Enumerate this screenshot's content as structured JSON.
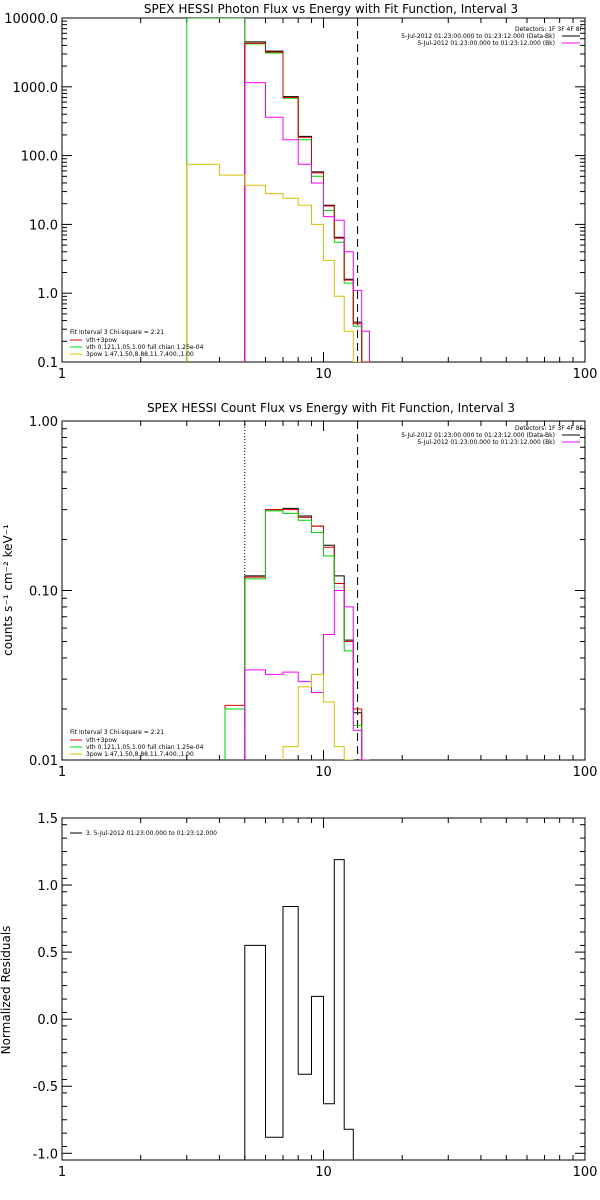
{
  "chart_data": [
    {
      "type": "line",
      "title": "SPEX HESSI Photon Flux vs Energy with Fit Function, Interval 3",
      "xscale": "log",
      "yscale": "log",
      "xlim": [
        1,
        100
      ],
      "ylim": [
        0.1,
        10000
      ],
      "xticks": [
        "1",
        "10",
        "100"
      ],
      "yticks": [
        "0.1",
        "1.0",
        "10.0",
        "100.0",
        "1000.0",
        "10000.0"
      ],
      "ytick_values": [
        0.1,
        1,
        10,
        100,
        1000,
        10000
      ],
      "header_lines": [
        "Detectors: 1F 3F 4F 8F",
        "5-Jul-2012 01:23:00.000 to 01:23:12.000 (Data-Bk)",
        "5-Jul-2012 01:23:00.000 to 01:23:12.000 (Bk)"
      ],
      "legend_title": "Fit Interval 3   Chi-square = 2.21",
      "legend": [
        {
          "label": "vth+3pow",
          "color": "#e00000"
        },
        {
          "label": "vth 0.121,1.05,1.00   full chian 1.25e-04",
          "color": "#00d000"
        },
        {
          "label": "3pow 1.47,1.50,8.88,11.7,400.,1.00",
          "color": "#d8c000"
        }
      ],
      "vlines": [
        {
          "x": 5.0,
          "style": "solid",
          "color": "#ff00ff"
        },
        {
          "x": 13.5,
          "style": "dashed",
          "color": "#000000"
        }
      ],
      "bin_edges": [
        3.0,
        4.0,
        5.0,
        6.0,
        7.0,
        8.0,
        9.0,
        10.0,
        11.0,
        12.0,
        13.0,
        14.0,
        15.0
      ],
      "series": [
        {
          "color": "#000000",
          "from": 2,
          "values": [
            4500,
            3300,
            720,
            190,
            58,
            19,
            6.5,
            1.6,
            0.38,
            0.1
          ]
        },
        {
          "color": "#00d000",
          "from": 0,
          "values": [
            10000,
            10000,
            4200,
            3100,
            680,
            170,
            50,
            16,
            5.5,
            1.4,
            0.33,
            0.1
          ]
        },
        {
          "color": "#e00000",
          "from": 2,
          "values": [
            4300,
            3200,
            700,
            185,
            56,
            18.5,
            6.3,
            1.55,
            0.36,
            0.1
          ]
        },
        {
          "color": "#ff00ff",
          "from": 2,
          "values": [
            1150,
            360,
            170,
            75,
            40,
            13,
            11.5,
            4,
            1.1,
            0.28
          ]
        },
        {
          "color": "#d8c000",
          "from": 0,
          "values": [
            75,
            52,
            37,
            28,
            24,
            19,
            10,
            3,
            0.9,
            0.28,
            0.1
          ]
        }
      ]
    },
    {
      "type": "line",
      "title": "SPEX HESSI Count Flux vs Energy with Fit Function, Interval 3",
      "xscale": "log",
      "yscale": "log",
      "xlim": [
        1,
        100
      ],
      "ylim": [
        0.01,
        1.0
      ],
      "xticks": [
        "1",
        "10",
        "100"
      ],
      "yticks": [
        "0.01",
        "0.10",
        "1.00"
      ],
      "ytick_values": [
        0.01,
        0.1,
        1.0
      ],
      "ylabel": "counts s⁻¹ cm⁻² keV⁻¹",
      "header_lines": [
        "Detectors: 1F 3F 4F 8F",
        "5-Jul-2012 01:23:00.000 to 01:23:12.000 (Data-Bk)",
        "5-Jul-2012 01:23:00.000 to 01:23:12.000 (Bk)"
      ],
      "legend_title": "Fit Interval 3   Chi-square = 2.21",
      "legend": [
        {
          "label": "vth+3pow",
          "color": "#e00000"
        },
        {
          "label": "vth 0.121,1.05,1.00   full chian 1.25e-04",
          "color": "#00d000"
        },
        {
          "label": "3pow 1.47,1.50,8.88,11.7,400.,1.00",
          "color": "#d8c000"
        }
      ],
      "vlines": [
        {
          "x": 5.0,
          "style": "dotted",
          "color": "#000000"
        },
        {
          "x": 13.5,
          "style": "dashed",
          "color": "#000000"
        }
      ],
      "bin_edges": [
        4.2,
        5.0,
        6.0,
        7.0,
        8.0,
        9.0,
        10.0,
        11.0,
        12.0,
        13.0,
        14.0,
        15.0
      ],
      "series": [
        {
          "color": "#000000",
          "from": 1,
          "values": [
            0.122,
            0.3,
            0.305,
            0.275,
            0.24,
            0.185,
            0.122,
            0.051,
            0.019
          ]
        },
        {
          "color": "#e00000",
          "from": 0,
          "values": [
            0.021,
            0.12,
            0.3,
            0.3,
            0.27,
            0.24,
            0.18,
            0.11,
            0.05,
            0.02
          ]
        },
        {
          "color": "#00d000",
          "from": 0,
          "values": [
            0.02,
            0.117,
            0.295,
            0.285,
            0.26,
            0.22,
            0.16,
            0.1,
            0.044,
            0.016,
            0.01
          ]
        },
        {
          "color": "#ff00ff",
          "from": 1,
          "values": [
            0.034,
            0.032,
            0.033,
            0.029,
            0.025,
            0.055,
            0.1,
            0.08,
            0.015,
            0.01
          ]
        },
        {
          "color": "#d8c000",
          "from": 3,
          "values": [
            0.012,
            0.027,
            0.032,
            0.022,
            0.012,
            0.01
          ]
        }
      ]
    },
    {
      "type": "line",
      "xscale": "log",
      "xlim": [
        1,
        100
      ],
      "ylim": [
        -1.05,
        1.5
      ],
      "xticks": [
        "1",
        "10",
        "100"
      ],
      "yticks": [
        "-1.0",
        "-0.5",
        "0.0",
        "0.5",
        "1.0",
        "1.5"
      ],
      "ytick_values": [
        -1.0,
        -0.5,
        0.0,
        0.5,
        1.0,
        1.5
      ],
      "ylabel": "Normalized Residuals",
      "legend": [
        {
          "label": "3.  5-Jul-2012 01:23:00.000 to 01:23:12.000",
          "color": "#000000"
        }
      ],
      "bin_edges": [
        5.0,
        6.0,
        7.0,
        8.0,
        9.0,
        10.0,
        11.0,
        12.0,
        13.0
      ],
      "series": [
        {
          "color": "#000000",
          "from": 0,
          "values": [
            0.55,
            -0.88,
            0.84,
            -0.41,
            0.17,
            -0.63,
            1.19,
            -0.82
          ]
        }
      ]
    }
  ]
}
